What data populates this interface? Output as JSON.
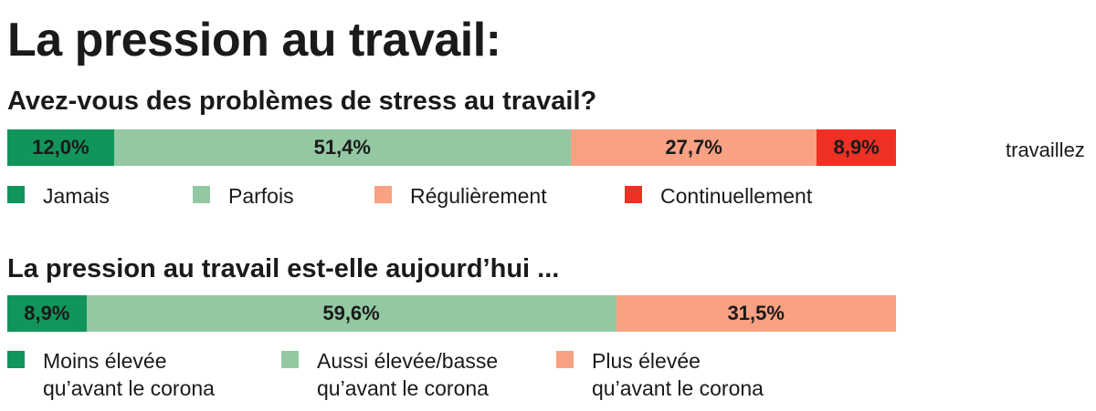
{
  "title": "La pression au travail:",
  "stray_text": "travaillez",
  "chart_data": [
    {
      "type": "bar",
      "orientation": "horizontal-stacked-100",
      "title": "Avez-vous des problèmes de stress au travail?",
      "categories": [
        "Jamais",
        "Parfois",
        "Régulièrement",
        "Continuellement"
      ],
      "values": [
        12.0,
        51.4,
        27.7,
        8.9
      ],
      "value_labels": [
        "12,0%",
        "51,4%",
        "27,7%",
        "8,9%"
      ],
      "colors": [
        "#11955b",
        "#93c8a3",
        "#f9a183",
        "#ef3024"
      ],
      "legend": "bottom"
    },
    {
      "type": "bar",
      "orientation": "horizontal-stacked-100",
      "title": "La pression au travail est-elle aujourd’hui ...",
      "categories": [
        "Moins élevée\nqu’avant le corona",
        "Aussi élevée/basse\nqu’avant le corona",
        "Plus élevée\nqu’avant le corona"
      ],
      "values": [
        8.9,
        59.6,
        31.5
      ],
      "value_labels": [
        "8,9%",
        "59,6%",
        "31,5%"
      ],
      "colors": [
        "#11955b",
        "#93c8a3",
        "#f9a183"
      ],
      "legend": "bottom"
    }
  ]
}
